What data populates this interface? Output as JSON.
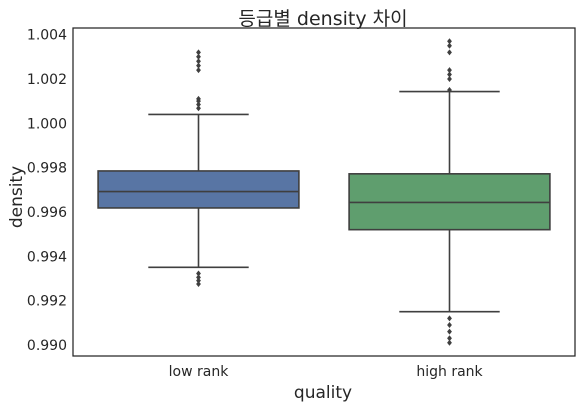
{
  "chart_data": {
    "type": "box",
    "title": "등급별 density 차이",
    "xlabel": "quality",
    "ylabel": "density",
    "ylim": [
      0.9895,
      1.0043
    ],
    "yticks": [
      0.99,
      0.992,
      0.994,
      0.996,
      0.998,
      1.0,
      1.002,
      1.004
    ],
    "ytick_labels": [
      "0.990",
      "0.992",
      "0.994",
      "0.996",
      "0.998",
      "1.000",
      "1.002",
      "1.004"
    ],
    "grid": false,
    "categories": [
      "low rank",
      "high rank"
    ],
    "boxes": [
      {
        "category": "low rank",
        "color": "#5875a4",
        "whisker_low": 0.9935,
        "q1": 0.99618,
        "median": 0.99692,
        "q3": 0.99785,
        "whisker_high": 1.0004,
        "outliers": [
          0.99275,
          0.9929,
          0.99305,
          0.99322,
          1.00068,
          1.00085,
          1.001,
          1.0011,
          1.0024,
          1.0026,
          1.0028,
          1.003,
          1.0032
        ]
      },
      {
        "category": "high rank",
        "color": "#5f9e6e",
        "whisker_low": 0.9915,
        "q1": 0.9952,
        "median": 0.99643,
        "q3": 0.99772,
        "whisker_high": 1.00143,
        "outliers": [
          0.9901,
          0.9903,
          0.9906,
          0.9909,
          0.9912,
          1.0015,
          1.002,
          1.0022,
          1.0024,
          1.0032,
          1.0035,
          1.0037
        ]
      }
    ],
    "colors": {
      "text": "#262626",
      "frame": "#262626",
      "box_edge": "#3f3f3f"
    }
  }
}
